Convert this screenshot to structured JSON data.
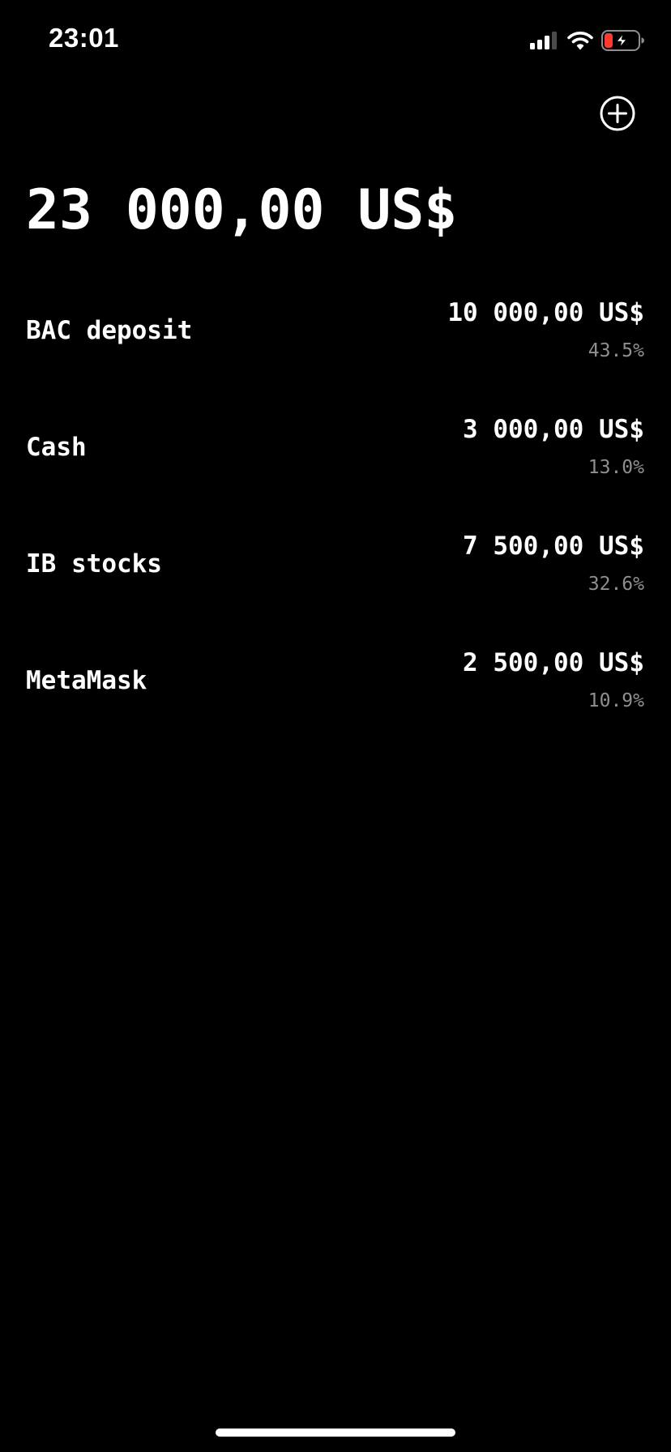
{
  "status_bar": {
    "time": "23:01",
    "icons": [
      "cellular-signal-icon",
      "wifi-icon",
      "battery-charging-icon"
    ],
    "battery_color": "#ff3b30"
  },
  "header": {
    "add_icon": "plus-circle-icon"
  },
  "summary": {
    "total": "23 000,00 US$"
  },
  "accounts": [
    {
      "name": "BAC deposit",
      "amount": "10 000,00 US$",
      "share": "43.5%"
    },
    {
      "name": "Cash",
      "amount": "3 000,00 US$",
      "share": "13.0%"
    },
    {
      "name": "IB stocks",
      "amount": "7 500,00 US$",
      "share": "32.6%"
    },
    {
      "name": "MetaMask",
      "amount": "2 500,00 US$",
      "share": "10.9%"
    }
  ],
  "theme": {
    "background": "#000000",
    "text": "#ffffff",
    "secondary_text": "#8e8e93"
  }
}
